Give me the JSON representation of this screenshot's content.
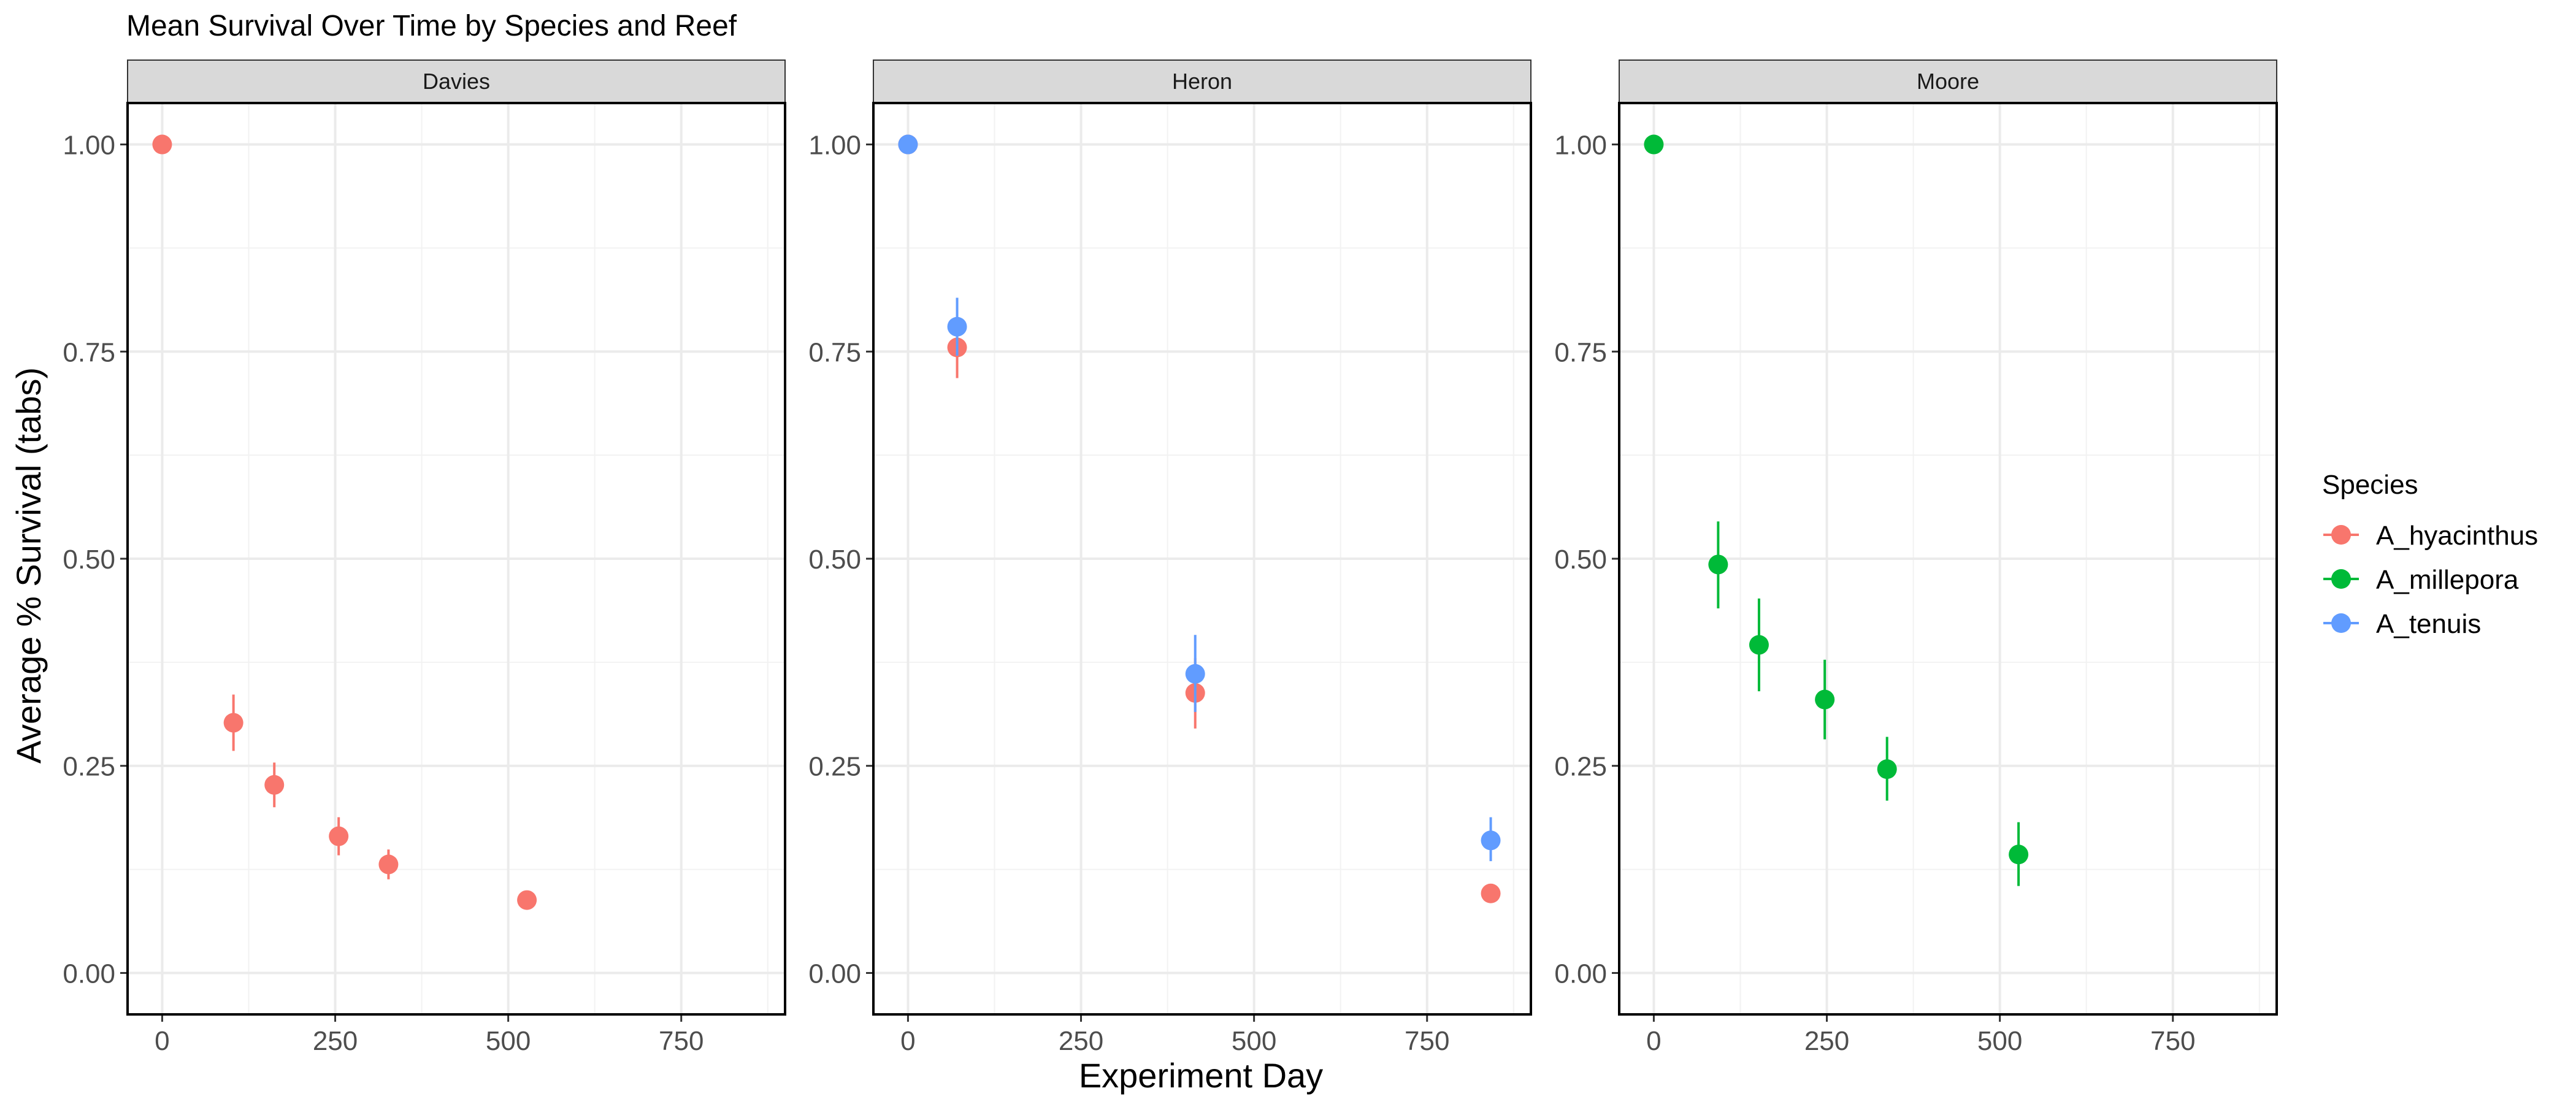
{
  "chart_data": {
    "type": "scatter",
    "title": "Mean Survival Over Time by Species and Reef",
    "xlabel": "Experiment Day",
    "ylabel": "Average % Survival (tabs)",
    "xlim": [
      -50,
      900
    ],
    "ylim": [
      -0.05,
      1.05
    ],
    "x_ticks": [
      0,
      250,
      500,
      750
    ],
    "x_tick_labels": [
      "0",
      "250",
      "500",
      "750"
    ],
    "y_ticks": [
      0,
      0.25,
      0.5,
      0.75,
      1.0
    ],
    "y_tick_labels": [
      "0.00",
      "0.25",
      "0.50",
      "0.75",
      "1.00"
    ],
    "grid": true,
    "legend": {
      "title": "Species",
      "placement": "right",
      "entries": [
        "A_hyacinthus",
        "A_millepora",
        "A_tenuis"
      ]
    },
    "colors": {
      "A_hyacinthus": "#F8766D",
      "A_millepora": "#00BA38",
      "A_tenuis": "#619CFF"
    },
    "facets": [
      {
        "label": "Davies",
        "series": [
          {
            "name": "A_hyacinthus",
            "points": [
              {
                "x": 0,
                "y": 1.0,
                "lo": 1.0,
                "hi": 1.0
              },
              {
                "x": 103,
                "y": 0.302,
                "lo": 0.268,
                "hi": 0.336
              },
              {
                "x": 162,
                "y": 0.227,
                "lo": 0.2,
                "hi": 0.254
              },
              {
                "x": 255,
                "y": 0.165,
                "lo": 0.142,
                "hi": 0.188
              },
              {
                "x": 327,
                "y": 0.131,
                "lo": 0.113,
                "hi": 0.149
              },
              {
                "x": 527,
                "y": 0.088,
                "lo": 0.078,
                "hi": 0.098
              }
            ]
          }
        ]
      },
      {
        "label": "Heron",
        "series": [
          {
            "name": "A_hyacinthus",
            "points": [
              {
                "x": 0,
                "y": 1.0,
                "lo": 1.0,
                "hi": 1.0
              },
              {
                "x": 71,
                "y": 0.755,
                "lo": 0.718,
                "hi": 0.79
              },
              {
                "x": 415,
                "y": 0.338,
                "lo": 0.295,
                "hi": 0.38
              },
              {
                "x": 842,
                "y": 0.096,
                "lo": 0.09,
                "hi": 0.102
              }
            ]
          },
          {
            "name": "A_tenuis",
            "points": [
              {
                "x": 0,
                "y": 1.0,
                "lo": 1.0,
                "hi": 1.0
              },
              {
                "x": 71,
                "y": 0.78,
                "lo": 0.745,
                "hi": 0.815
              },
              {
                "x": 415,
                "y": 0.361,
                "lo": 0.315,
                "hi": 0.408
              },
              {
                "x": 842,
                "y": 0.16,
                "lo": 0.135,
                "hi": 0.188
              }
            ]
          }
        ]
      },
      {
        "label": "Moore",
        "series": [
          {
            "name": "A_millepora",
            "points": [
              {
                "x": 0,
                "y": 1.0,
                "lo": 1.0,
                "hi": 1.0
              },
              {
                "x": 93,
                "y": 0.493,
                "lo": 0.44,
                "hi": 0.545
              },
              {
                "x": 152,
                "y": 0.396,
                "lo": 0.34,
                "hi": 0.452
              },
              {
                "x": 247,
                "y": 0.33,
                "lo": 0.282,
                "hi": 0.378
              },
              {
                "x": 337,
                "y": 0.246,
                "lo": 0.208,
                "hi": 0.285
              },
              {
                "x": 527,
                "y": 0.143,
                "lo": 0.105,
                "hi": 0.182
              }
            ]
          }
        ]
      }
    ]
  }
}
